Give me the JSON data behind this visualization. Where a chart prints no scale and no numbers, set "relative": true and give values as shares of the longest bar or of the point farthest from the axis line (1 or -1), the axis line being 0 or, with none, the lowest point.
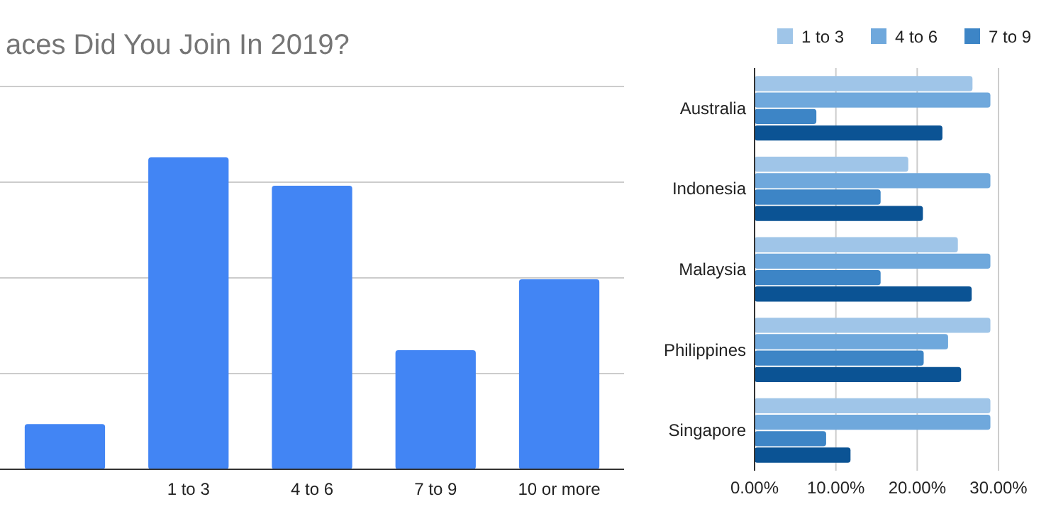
{
  "chart_data": [
    {
      "type": "bar",
      "title": "aces Did You Join In 2019?",
      "categories": [
        null,
        "1 to 3",
        "4 to 6",
        "7 to 9",
        "10 or more"
      ],
      "values": [
        0.145,
        1,
        0.909,
        0.382,
        0.609
      ],
      "color": "#4285f4",
      "relative": true,
      "grid": true
    },
    {
      "type": "bar",
      "orientation": "horizontal",
      "categories": [
        "Australia",
        "Indonesia",
        "Malaysia",
        "Philippines",
        "Singapore"
      ],
      "series": [
        {
          "name": "1 to 3",
          "color": "#9fc5e8",
          "values": [
            26.8,
            18.9,
            25,
            29,
            29
          ]
        },
        {
          "name": "4 to 6",
          "color": "#6fa8dc",
          "values": [
            29,
            29,
            29,
            23.8,
            29
          ]
        },
        {
          "name": "7 to 9",
          "color": "#3d85c6",
          "values": [
            7.6,
            15.5,
            15.5,
            20.8,
            8.8
          ]
        },
        {
          "color": "#0b5394",
          "values": [
            23.1,
            20.7,
            26.7,
            25.4,
            11.8
          ]
        }
      ],
      "xlim": [
        0,
        30
      ],
      "xticks": [
        {
          "value": 0,
          "label": "0.00%"
        },
        {
          "value": 10,
          "label": "10.00%"
        },
        {
          "value": 20,
          "label": "20.00%"
        },
        {
          "value": 30,
          "label": "30.00%"
        }
      ],
      "grid": "x",
      "legend": "top"
    }
  ]
}
